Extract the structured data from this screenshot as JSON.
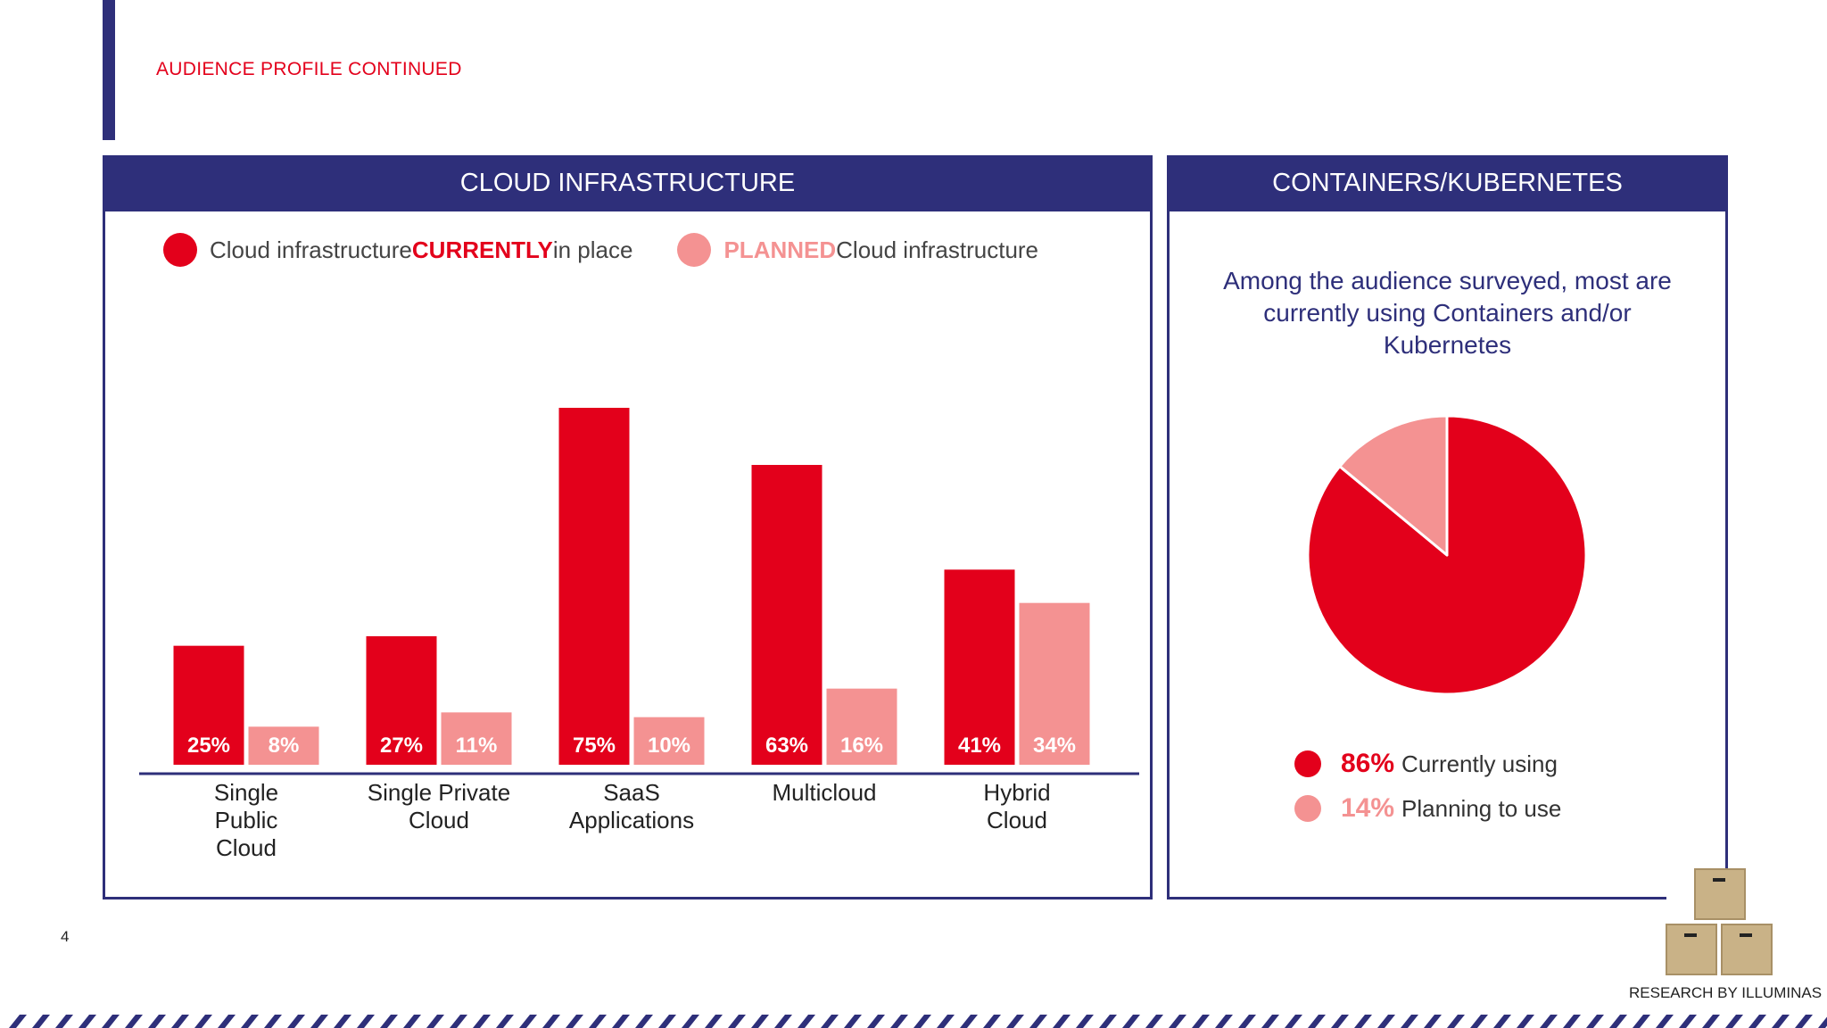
{
  "section_label": "AUDIENCE PROFILE CONTINUED",
  "page_number": "4",
  "credit": "RESEARCH BY ILLUMINAS",
  "colors": {
    "navy": "#2e2f7a",
    "red": "#e3001b",
    "pink": "#f49292"
  },
  "left_panel": {
    "title": "CLOUD INFRASTRUCTURE",
    "legend": {
      "current": {
        "pre": "Cloud infrastructure ",
        "strong": "CURRENTLY",
        "post": " in place"
      },
      "planned": {
        "strong": "PLANNED",
        "post": " Cloud infrastructure"
      }
    }
  },
  "right_panel": {
    "title": "CONTAINERS/KUBERNETES",
    "description": "Among the audience surveyed, most are currently using Containers and/or Kubernetes",
    "legend": [
      {
        "pct": "86%",
        "label": "Currently using"
      },
      {
        "pct": "14%",
        "label": "Planning to use"
      }
    ]
  },
  "chart_data": [
    {
      "type": "bar",
      "categories": [
        "Single Public Cloud",
        "Single Private Cloud",
        "SaaS Applications",
        "Multicloud",
        "Hybrid Cloud"
      ],
      "category_lines": [
        [
          "Single",
          "Public",
          "Cloud"
        ],
        [
          "Single Private",
          "Cloud"
        ],
        [
          "SaaS",
          "Applications"
        ],
        [
          "Multicloud"
        ],
        [
          "Hybrid",
          "Cloud"
        ]
      ],
      "series": [
        {
          "name": "Cloud infrastructure CURRENTLY in place",
          "values": [
            25,
            27,
            75,
            63,
            41
          ],
          "labels": [
            "25%",
            "27%",
            "75%",
            "63%",
            "41%"
          ],
          "color": "#e3001b"
        },
        {
          "name": "PLANNED Cloud infrastructure",
          "values": [
            8,
            11,
            10,
            16,
            34
          ],
          "labels": [
            "8%",
            "11%",
            "10%",
            "16%",
            "34%"
          ],
          "color": "#f49292"
        }
      ],
      "ylim": [
        0,
        75
      ],
      "grid": false,
      "legend_position": "top"
    },
    {
      "type": "pie",
      "slices": [
        {
          "label": "Currently using",
          "value": 86,
          "color": "#e3001b"
        },
        {
          "label": "Planning to use",
          "value": 14,
          "color": "#f49292"
        }
      ],
      "legend_position": "bottom"
    }
  ]
}
